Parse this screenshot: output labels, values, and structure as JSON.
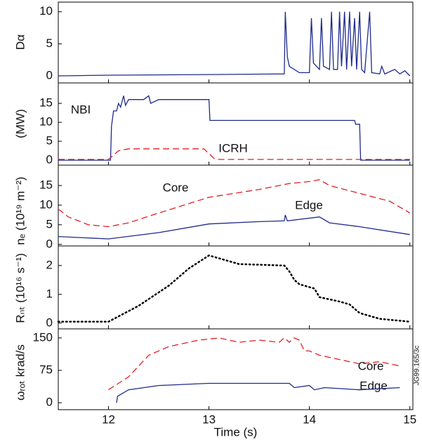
{
  "figure_id": "JG99.165/3c",
  "chart_data": [
    {
      "type": "line",
      "ylabel": "Dα",
      "xlim": [
        11.5,
        15.03
      ],
      "ylim": [
        -1.1,
        11.5
      ],
      "yticks": [
        0,
        5,
        10
      ],
      "series": [
        {
          "name": "Dα",
          "color": "#1f2a8c",
          "style": "solid",
          "x": [
            11.5,
            12.0,
            13.0,
            13.75,
            13.76,
            13.78,
            13.8,
            13.9,
            14.0,
            14.02,
            14.04,
            14.1,
            14.12,
            14.14,
            14.2,
            14.22,
            14.24,
            14.28,
            14.3,
            14.32,
            14.35,
            14.37,
            14.4,
            14.42,
            14.45,
            14.47,
            14.5,
            14.52,
            14.55,
            14.6,
            14.62,
            14.7,
            14.72,
            14.75,
            14.85,
            14.9,
            14.95,
            15.0
          ],
          "values": [
            0,
            0.1,
            0.2,
            0.3,
            10,
            3,
            1.5,
            0.5,
            0.5,
            9,
            2,
            1,
            9,
            1.5,
            1,
            10,
            1,
            1,
            10,
            1.5,
            10,
            1,
            10,
            1.5,
            9,
            1,
            10,
            1,
            0.5,
            10,
            0.5,
            0.3,
            1.5,
            0.3,
            1,
            0.3,
            0.8,
            0
          ]
        }
      ]
    },
    {
      "type": "line",
      "ylabel": "(MW)",
      "xlim": [
        11.5,
        15.03
      ],
      "ylim": [
        -1.3,
        20.4
      ],
      "yticks": [
        0,
        5,
        10,
        15
      ],
      "annotations": [
        "NBI",
        "ICRH"
      ],
      "series": [
        {
          "name": "NBI",
          "color": "#1f2a8c",
          "style": "solid",
          "x": [
            11.5,
            12.02,
            12.03,
            12.05,
            12.08,
            12.1,
            12.12,
            12.15,
            12.17,
            12.2,
            12.35,
            12.4,
            12.42,
            12.5,
            13.0,
            13.01,
            14.45,
            14.46,
            14.5,
            14.51,
            15.0
          ],
          "values": [
            0,
            0,
            9,
            13,
            13,
            15,
            14,
            17,
            14.5,
            16,
            16,
            17,
            15,
            16,
            16,
            10.5,
            10.5,
            9.5,
            9.5,
            0,
            0
          ]
        },
        {
          "name": "ICRH",
          "color": "#e31e24",
          "style": "dash",
          "x": [
            11.5,
            12.0,
            12.1,
            12.2,
            12.95,
            13.05,
            13.1,
            15.0
          ],
          "values": [
            0.2,
            0.2,
            2.5,
            3,
            3,
            0.5,
            0.2,
            0.2
          ]
        }
      ]
    },
    {
      "type": "line",
      "ylabel": "nₑ (10¹⁹ m⁻²)",
      "xlim": [
        11.5,
        15.03
      ],
      "ylim": [
        -0.4,
        20.2
      ],
      "yticks": [
        0,
        5,
        10,
        15
      ],
      "annotations": [
        "Core",
        "Edge"
      ],
      "series": [
        {
          "name": "Core",
          "color": "#e31e24",
          "style": "dash",
          "x": [
            11.5,
            11.6,
            11.8,
            12.0,
            12.2,
            12.5,
            13.0,
            13.5,
            13.8,
            14.0,
            14.1,
            14.2,
            14.5,
            14.8,
            15.0
          ],
          "values": [
            9,
            7,
            5,
            4.5,
            5.5,
            8,
            12,
            14,
            15.5,
            16,
            16.5,
            15,
            13,
            11,
            8
          ]
        },
        {
          "name": "Edge",
          "color": "#1f2a8c",
          "style": "solid",
          "x": [
            11.5,
            12.0,
            12.5,
            13.0,
            13.5,
            13.75,
            13.76,
            13.78,
            14.1,
            14.2,
            14.5,
            15.0
          ],
          "values": [
            2,
            1.4,
            3,
            5.2,
            5.8,
            6,
            7.5,
            6,
            7,
            5.5,
            4.5,
            2.5
          ]
        }
      ]
    },
    {
      "type": "line",
      "ylabel": "Rₙₜ (10¹⁶ s⁻¹)",
      "xlim": [
        11.5,
        15.03
      ],
      "ylim": [
        -0.2,
        2.68
      ],
      "yticks": [
        0,
        1,
        2
      ],
      "series": [
        {
          "name": "Rnt",
          "color": "#000000",
          "style": "dot",
          "x": [
            11.5,
            12.0,
            12.3,
            12.6,
            12.8,
            13.0,
            13.1,
            13.3,
            13.75,
            13.8,
            13.85,
            13.9,
            14.0,
            14.05,
            14.1,
            14.3,
            14.4,
            14.5,
            14.7,
            15.0
          ],
          "values": [
            0.05,
            0.05,
            0.6,
            1.3,
            1.9,
            2.35,
            2.25,
            2.05,
            2.0,
            1.8,
            1.5,
            1.35,
            1.25,
            1.2,
            0.9,
            0.75,
            0.65,
            0.35,
            0.15,
            0.05
          ]
        }
      ]
    },
    {
      "type": "line",
      "ylabel": "ωᵣₒₜ krad/s",
      "xlabel": "Time (s)",
      "xlim": [
        11.5,
        15.03
      ],
      "ylim": [
        -16,
        171
      ],
      "yticks": [
        0,
        75,
        150
      ],
      "xticks": [
        12,
        13,
        14,
        15
      ],
      "annotations": [
        "Core",
        "Edge"
      ],
      "series": [
        {
          "name": "Core",
          "color": "#e31e24",
          "style": "dash",
          "x": [
            12.0,
            12.2,
            12.4,
            12.6,
            12.9,
            13.1,
            13.3,
            13.5,
            13.7,
            13.75,
            13.8,
            13.85,
            13.9,
            13.95,
            14.0,
            14.1,
            14.5,
            14.7,
            14.9
          ],
          "values": [
            30,
            60,
            110,
            130,
            145,
            150,
            140,
            145,
            140,
            150,
            140,
            150,
            145,
            120,
            120,
            110,
            90,
            95,
            85
          ]
        },
        {
          "name": "Edge",
          "color": "#1f2a8c",
          "style": "solid",
          "x": [
            12.08,
            12.09,
            12.2,
            12.5,
            13.0,
            13.8,
            13.85,
            14.0,
            14.05,
            14.15,
            14.5,
            14.9
          ],
          "values": [
            0,
            15,
            30,
            40,
            45,
            45,
            35,
            40,
            30,
            35,
            30,
            35
          ]
        }
      ]
    }
  ]
}
